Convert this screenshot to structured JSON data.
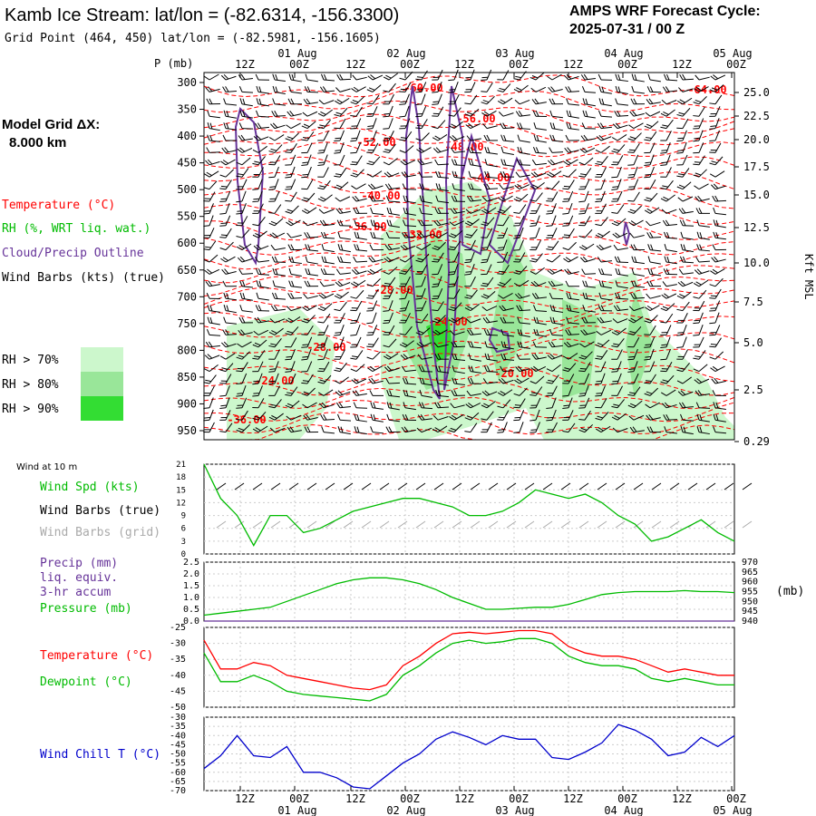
{
  "header": {
    "title": "Kamb Ice Stream:  lat/lon = (-82.6314, -156.3300)",
    "grid_point": "Grid Point (464, 450) lat/lon = (-82.5981, -156.1605)",
    "cycle_line1": "AMPS WRF Forecast Cycle:",
    "cycle_line2": "2025-07-31 / 00  Z"
  },
  "legend": {
    "grid_label": "Model Grid ΔX:",
    "grid_value": "8.000 km",
    "temperature": "Temperature (°C)",
    "rh": "RH (%, WRT liq. wat.)",
    "cloud": "Cloud/Precip Outline",
    "wind": "Wind Barbs (kts) (true)",
    "rh70": "RH > 70%",
    "rh80": "RH > 80%",
    "rh90": "RH > 90%"
  },
  "colors": {
    "temperature": "#ff0000",
    "rh70": "#ccf7cc",
    "rh80": "#99e699",
    "rh90": "#33dd33",
    "cloud_outline": "#663399",
    "wind_speed": "#00bb00",
    "wind_barbs_grid": "#aaaaaa",
    "pressure": "#00bb00",
    "precip": "#663399",
    "dewpoint": "#00bb00",
    "wind_chill": "#0000cc"
  },
  "time_axis": {
    "top_dates": [
      "01 Aug",
      "02 Aug",
      "03 Aug",
      "04 Aug",
      "05 Aug"
    ],
    "top_hours": [
      "12Z",
      "00Z",
      "12Z",
      "00Z",
      "12Z",
      "00Z",
      "12Z",
      "00Z",
      "12Z",
      "00Z"
    ],
    "bottom_hours": [
      "12Z",
      "00Z",
      "12Z",
      "00Z",
      "12Z",
      "00Z",
      "12Z",
      "00Z",
      "12Z",
      "00Z"
    ],
    "bottom_dates": [
      "01 Aug",
      "02 Aug",
      "03 Aug",
      "04 Aug",
      "05 Aug"
    ]
  },
  "chart_data": [
    {
      "type": "heatmap",
      "name": "time-height cross section",
      "y_axis_label": "P (mb)",
      "pressure_ticks": [
        "300",
        "350",
        "400",
        "450",
        "500",
        "550",
        "600",
        "650",
        "700",
        "750",
        "800",
        "850",
        "900",
        "950"
      ],
      "right_axis_label": "Kft MSL",
      "height_ticks": [
        "25.0",
        "22.5",
        "20.0",
        "17.5",
        "15.0",
        "12.5",
        "10.0",
        "7.5",
        "5.0",
        "2.5",
        "0.29"
      ],
      "temperature_labels": [
        "-64.00",
        "-60.00",
        "-56.00",
        "-52.00",
        "-48.00",
        "-44.00",
        "-40.00",
        "-36.00",
        "-32.00",
        "-28.00",
        "-24.00",
        "-28.00",
        "-24.00",
        "-20.00",
        "-36.00"
      ]
    },
    {
      "type": "line",
      "name": "wind at 10 m",
      "panel_title": "Wind at 10 m",
      "labels": [
        "Wind Spd (kts)",
        "Wind Barbs (true)",
        "Wind Barbs (grid)"
      ],
      "y_ticks": [
        "21",
        "18",
        "15",
        "12",
        "9",
        "6",
        "3",
        "0"
      ],
      "ylim": [
        0,
        21
      ],
      "x": [
        0,
        3,
        6,
        9,
        12,
        15,
        18,
        21,
        24,
        27,
        30,
        33,
        36,
        39,
        42,
        45,
        48,
        51,
        54,
        57,
        60,
        63,
        66,
        69,
        72,
        75,
        78,
        81,
        84,
        87,
        90,
        93,
        96
      ],
      "series": [
        {
          "name": "Wind Spd (kts)",
          "values": [
            21,
            13,
            9,
            2,
            9,
            9,
            5,
            6,
            8,
            10,
            11,
            12,
            13,
            13,
            12,
            11,
            9,
            9,
            10,
            12,
            15,
            14,
            13,
            14,
            12,
            9,
            7,
            3,
            4,
            6,
            8,
            5,
            3
          ]
        }
      ]
    },
    {
      "type": "line",
      "name": "precip and pressure",
      "labels": [
        "Precip (mm)",
        "liq. equiv.",
        "3-hr accum",
        "Pressure (mb)"
      ],
      "left_ticks": [
        "2.5",
        "2.0",
        "1.5",
        "1.0",
        "0.5",
        "0.0"
      ],
      "right_ticks": [
        "970",
        "965",
        "960",
        "955",
        "950",
        "945",
        "940"
      ],
      "right_unit": "(mb)",
      "ylim_precip": [
        0,
        2.5
      ],
      "ylim_pressure": [
        940,
        970
      ],
      "x": [
        0,
        3,
        6,
        9,
        12,
        15,
        18,
        21,
        24,
        27,
        30,
        33,
        36,
        39,
        42,
        45,
        48,
        51,
        54,
        57,
        60,
        63,
        66,
        69,
        72,
        75,
        78,
        81,
        84,
        87,
        90,
        93,
        96
      ],
      "series": [
        {
          "name": "Pressure (mb)",
          "values": [
            943,
            944,
            945,
            946,
            947,
            950,
            953,
            956,
            959,
            961,
            962,
            962,
            961,
            959,
            956,
            952,
            949,
            946,
            946,
            946.5,
            947,
            947,
            948.5,
            951,
            953.5,
            954.5,
            955,
            955,
            955,
            955.5,
            955,
            955,
            954.5
          ]
        },
        {
          "name": "Precip (mm)",
          "values": [
            0,
            0,
            0,
            0,
            0,
            0,
            0,
            0,
            0,
            0,
            0,
            0,
            0,
            0,
            0,
            0,
            0,
            0,
            0,
            0,
            0,
            0,
            0,
            0,
            0,
            0,
            0,
            0,
            0,
            0,
            0,
            0,
            0
          ]
        }
      ]
    },
    {
      "type": "line",
      "name": "temperature and dewpoint",
      "labels": [
        "Temperature (°C)",
        "Dewpoint (°C)"
      ],
      "y_ticks": [
        "-25",
        "-30",
        "-35",
        "-40",
        "-45",
        "-50"
      ],
      "ylim": [
        -50,
        -25
      ],
      "x": [
        0,
        3,
        6,
        9,
        12,
        15,
        18,
        21,
        24,
        27,
        30,
        33,
        36,
        39,
        42,
        45,
        48,
        51,
        54,
        57,
        60,
        63,
        66,
        69,
        72,
        75,
        78,
        81,
        84,
        87,
        90,
        93,
        96
      ],
      "series": [
        {
          "name": "Temperature (°C)",
          "values": [
            -29,
            -38,
            -38,
            -36,
            -37,
            -40,
            -41,
            -42,
            -43,
            -44,
            -44.5,
            -43,
            -37,
            -34,
            -30,
            -27,
            -26.5,
            -27,
            -26.5,
            -26,
            -26,
            -27,
            -31,
            -33,
            -34,
            -34,
            -35,
            -37,
            -39,
            -38,
            -39,
            -40,
            -40
          ]
        },
        {
          "name": "Dewpoint (°C)",
          "values": [
            -33,
            -42,
            -42,
            -40,
            -42,
            -45,
            -46,
            -46.5,
            -47,
            -47.5,
            -48,
            -46,
            -40,
            -37,
            -33,
            -30,
            -29,
            -30,
            -29.5,
            -28.5,
            -28.5,
            -30,
            -34,
            -36,
            -37,
            -37,
            -38,
            -41,
            -42,
            -41,
            -42,
            -43,
            -43
          ]
        }
      ]
    },
    {
      "type": "line",
      "name": "wind chill",
      "labels": [
        "Wind Chill T (°C)"
      ],
      "y_ticks": [
        "-30",
        "-35",
        "-40",
        "-45",
        "-50",
        "-55",
        "-60",
        "-65",
        "-70"
      ],
      "ylim": [
        -70,
        -30
      ],
      "x": [
        0,
        3,
        6,
        9,
        12,
        15,
        18,
        21,
        24,
        27,
        30,
        33,
        36,
        39,
        42,
        45,
        48,
        51,
        54,
        57,
        60,
        63,
        66,
        69,
        72,
        75,
        78,
        81,
        84,
        87,
        90,
        93,
        96
      ],
      "series": [
        {
          "name": "Wind Chill T (°C)",
          "values": [
            -58,
            -51,
            -40,
            -51,
            -52,
            -46,
            -60,
            -60,
            -63,
            -68,
            -69,
            -62,
            -55,
            -50,
            -42,
            -38,
            -41,
            -45,
            -40,
            -42,
            -42,
            -52,
            -53,
            -49,
            -44,
            -34,
            -37,
            -42,
            -51,
            -49,
            -41,
            -46,
            -40
          ]
        }
      ]
    }
  ]
}
